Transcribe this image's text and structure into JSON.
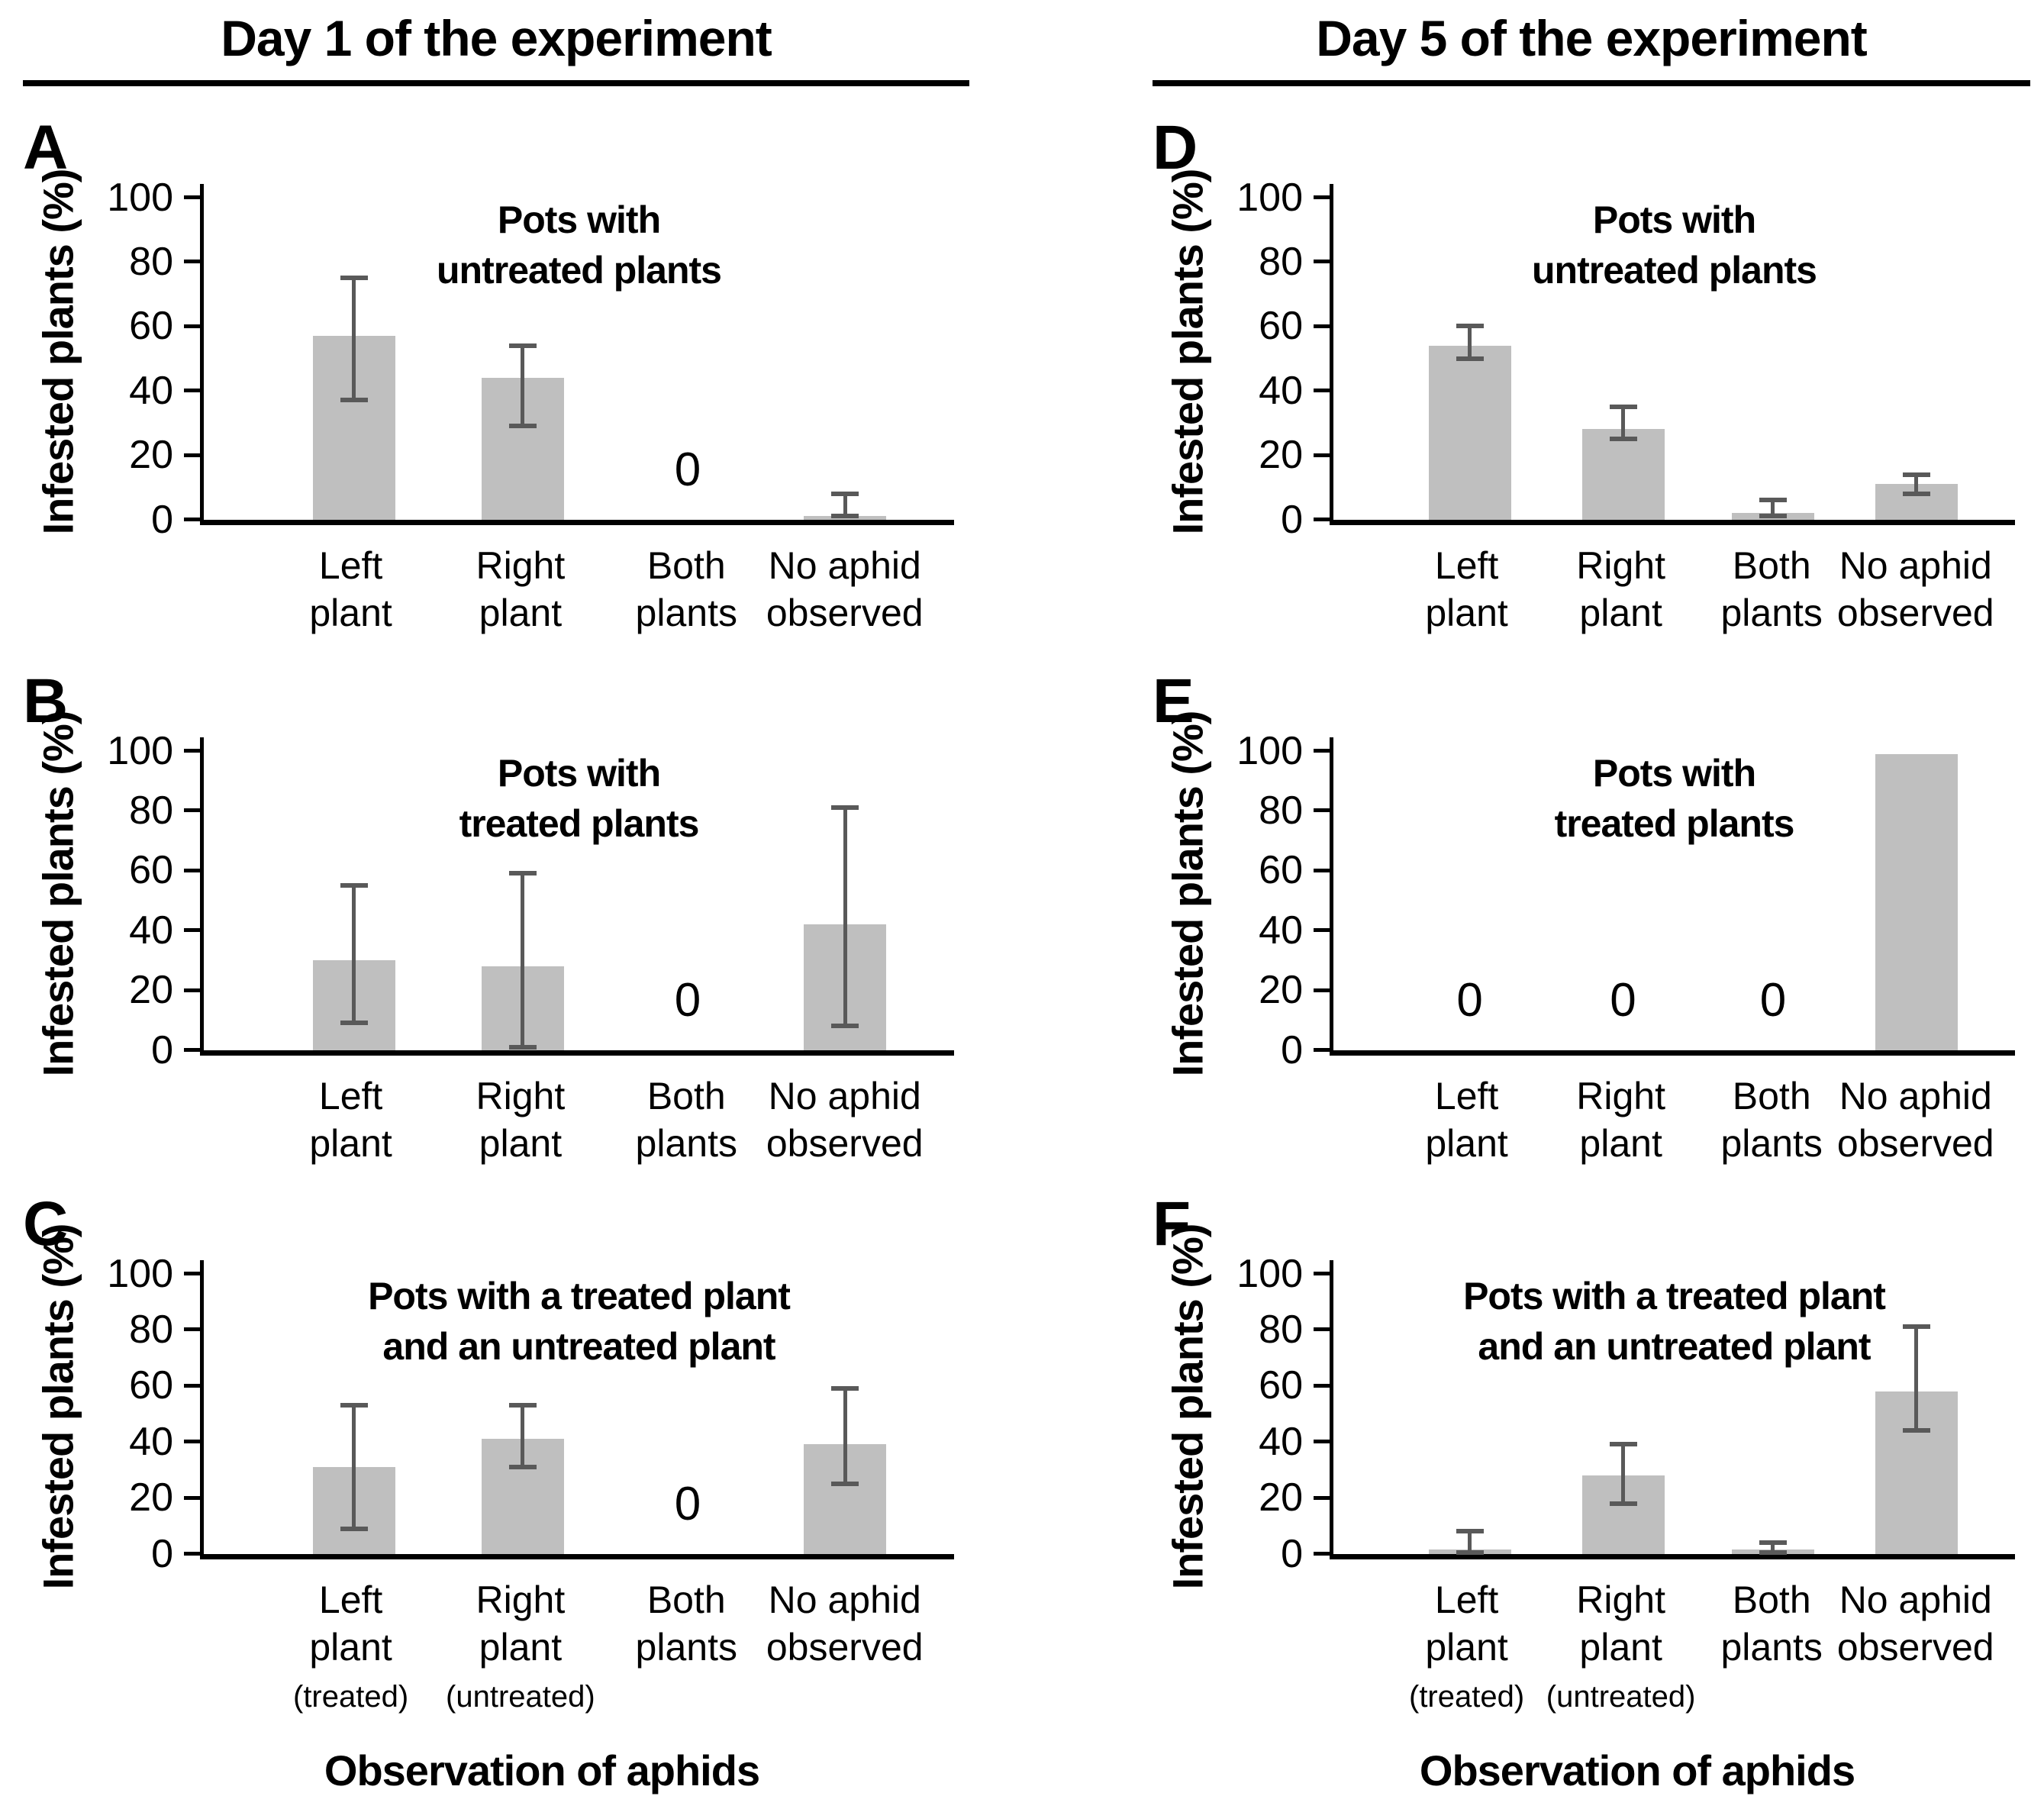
{
  "figure_type": "multi-panel bar chart figure",
  "columns": [
    {
      "header": "Day 1 of the experiment",
      "panel_ids": [
        "A",
        "B",
        "C"
      ]
    },
    {
      "header": "Day 5 of the experiment",
      "panel_ids": [
        "D",
        "E",
        "F"
      ]
    }
  ],
  "axis": {
    "ylabel": "Infested plants (%)",
    "yticks": [
      0,
      20,
      40,
      60,
      80,
      100
    ],
    "ylim": [
      0,
      100
    ],
    "x_axis_title": "Observation of aphids"
  },
  "categories": [
    {
      "lines": [
        "Left",
        "plant"
      ]
    },
    {
      "lines": [
        "Right",
        "plant"
      ]
    },
    {
      "lines": [
        "Both",
        "plants"
      ]
    },
    {
      "lines": [
        "No aphid",
        "observed"
      ]
    }
  ],
  "mixed_pot_sublabels": [
    "(treated)",
    "(untreated)",
    "",
    ""
  ],
  "zero_annotation": "0",
  "colors": {
    "bar": "#bfbfbf",
    "error_bar": "#595959",
    "axis": "#000000",
    "text": "#000000",
    "background": "#ffffff"
  },
  "chart_data": [
    {
      "panel": "A",
      "type": "bar",
      "column": "Day 1 of the experiment",
      "title": "Pots with untreated plants",
      "title_lines": [
        "Pots with",
        "untreated plants"
      ],
      "categories": [
        "Left plant",
        "Right plant",
        "Both plants",
        "No aphid observed"
      ],
      "values": [
        57,
        44,
        0,
        1
      ],
      "error_low": [
        37,
        29,
        null,
        1
      ],
      "error_high": [
        75,
        54,
        null,
        8
      ],
      "ylim": [
        0,
        100
      ],
      "ylabel": "Infested plants (%)",
      "xlabel": "",
      "has_sublabels": false,
      "has_x_axis_title": false
    },
    {
      "panel": "B",
      "type": "bar",
      "column": "Day 1 of the experiment",
      "title": "Pots with treated plants",
      "title_lines": [
        "Pots with",
        "treated plants"
      ],
      "categories": [
        "Left plant",
        "Right plant",
        "Both plants",
        "No aphid observed"
      ],
      "values": [
        30,
        28,
        0,
        42
      ],
      "error_low": [
        9,
        1,
        null,
        8
      ],
      "error_high": [
        55,
        59,
        null,
        81
      ],
      "ylim": [
        0,
        100
      ],
      "ylabel": "Infested plants (%)",
      "xlabel": "",
      "has_sublabels": false,
      "has_x_axis_title": false
    },
    {
      "panel": "C",
      "type": "bar",
      "column": "Day 1 of the experiment",
      "title": "Pots with a treated plant and an untreated plant",
      "title_lines": [
        "Pots with a treated plant",
        "and an untreated plant"
      ],
      "categories": [
        "Left plant (treated)",
        "Right plant (untreated)",
        "Both plants",
        "No aphid observed"
      ],
      "values": [
        31,
        41,
        0,
        39
      ],
      "error_low": [
        9,
        31,
        null,
        25
      ],
      "error_high": [
        53,
        53,
        null,
        59
      ],
      "ylim": [
        0,
        100
      ],
      "ylabel": "Infested plants (%)",
      "xlabel": "Observation of aphids",
      "has_sublabels": true,
      "has_x_axis_title": true
    },
    {
      "panel": "D",
      "type": "bar",
      "column": "Day 5 of the experiment",
      "title": "Pots with untreated plants",
      "title_lines": [
        "Pots with",
        "untreated plants"
      ],
      "categories": [
        "Left plant",
        "Right plant",
        "Both plants",
        "No aphid observed"
      ],
      "values": [
        54,
        28,
        2,
        11
      ],
      "error_low": [
        50,
        25,
        1,
        8
      ],
      "error_high": [
        60,
        35,
        6,
        14
      ],
      "ylim": [
        0,
        100
      ],
      "ylabel": "Infested plants (%)",
      "xlabel": "",
      "has_sublabels": false,
      "has_x_axis_title": false
    },
    {
      "panel": "E",
      "type": "bar",
      "column": "Day 5 of the experiment",
      "title": "Pots with treated plants",
      "title_lines": [
        "Pots with",
        "treated plants"
      ],
      "categories": [
        "Left plant",
        "Right plant",
        "Both plants",
        "No aphid observed"
      ],
      "values": [
        0,
        0,
        0,
        99
      ],
      "error_low": [
        null,
        null,
        null,
        null
      ],
      "error_high": [
        null,
        null,
        null,
        null
      ],
      "ylim": [
        0,
        100
      ],
      "ylabel": "Infested plants (%)",
      "xlabel": "",
      "has_sublabels": false,
      "has_x_axis_title": false
    },
    {
      "panel": "F",
      "type": "bar",
      "column": "Day 5 of the experiment",
      "title": "Pots with a treated plant and an untreated plant",
      "title_lines": [
        "Pots with a treated plant",
        "and an untreated plant"
      ],
      "categories": [
        "Left plant (treated)",
        "Right plant (untreated)",
        "Both plants",
        "No aphid observed"
      ],
      "values": [
        1.5,
        28,
        1.5,
        58
      ],
      "error_low": [
        0.5,
        18,
        0.5,
        44
      ],
      "error_high": [
        8,
        39,
        4,
        81
      ],
      "ylim": [
        0,
        100
      ],
      "ylabel": "Infested plants (%)",
      "xlabel": "Observation of aphids",
      "has_sublabels": true,
      "has_x_axis_title": true
    }
  ]
}
